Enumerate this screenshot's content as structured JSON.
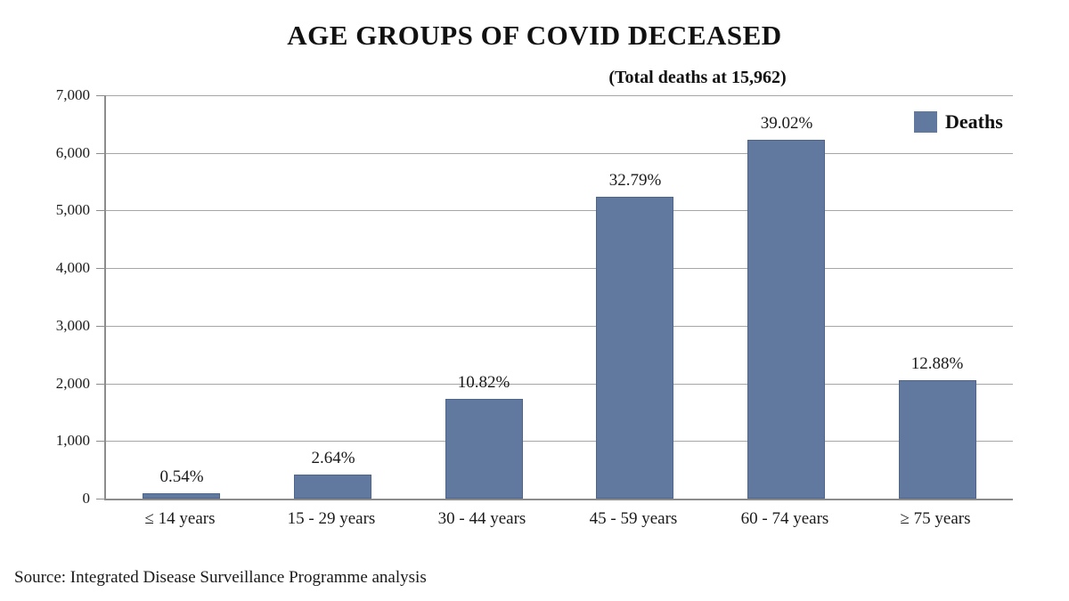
{
  "title": "AGE GROUPS OF COVID DECEASED",
  "subtitle": "(Total deaths at 15,962)",
  "legend": {
    "label": "Deaths"
  },
  "source": "Source: Integrated Disease Surveillance Programme analysis",
  "colors": {
    "bar": "#61799f",
    "bar_border": "#4e648c",
    "gridline": "#a6a6a6",
    "axis": "#8c8c8c",
    "text": "#1a1a1a"
  },
  "chart_data": {
    "type": "bar",
    "title": "AGE GROUPS OF COVID DECEASED",
    "subtitle": "(Total deaths at 15,962)",
    "total_deaths": 15962,
    "categories": [
      "≤ 14 years",
      "15 - 29 years",
      "30 - 44 years",
      "45 - 59 years",
      "60 - 74 years",
      "≥ 75 years"
    ],
    "values": [
      86,
      421,
      1727,
      5234,
      6228,
      2056
    ],
    "bar_labels": [
      "0.54%",
      "2.64%",
      "10.82%",
      "32.79%",
      "39.02%",
      "12.88%"
    ],
    "series_name": "Deaths",
    "xlabel": "",
    "ylabel": "",
    "ylim": [
      0,
      7000
    ],
    "ytick_interval": 1000,
    "yticks": [
      "7,000",
      "6,000",
      "5,000",
      "4,000",
      "3,000",
      "2,000",
      "1,000",
      "0"
    ],
    "grid": true,
    "legend_position": "top-right",
    "source": "Source: Integrated Disease Surveillance Programme analysis"
  }
}
